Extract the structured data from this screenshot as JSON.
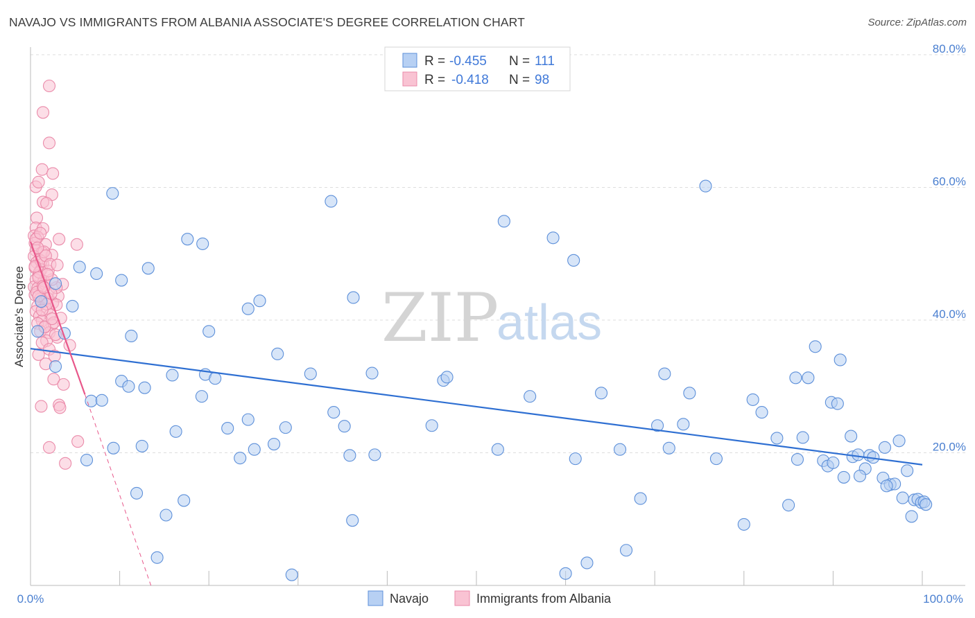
{
  "title": "NAVAJO VS IMMIGRANTS FROM ALBANIA ASSOCIATE'S DEGREE CORRELATION CHART",
  "source": "Source: ZipAtlas.com",
  "watermark": {
    "zip": "ZIP",
    "atlas": "atlas"
  },
  "colors": {
    "navajo_fill": "#b7d0f3",
    "navajo_stroke": "#5c8fd9",
    "navajo_line": "#2e6fd2",
    "albania_fill": "#f9c3d3",
    "albania_stroke": "#ea8aa9",
    "albania_line": "#e8578a",
    "grid": "#dddddd",
    "axis_text": "#4a7fd0"
  },
  "legend": {
    "rows": [
      {
        "r_label": "R =",
        "r_value": "-0.455",
        "n_label": "N =",
        "n_value": "111"
      },
      {
        "r_label": "R =",
        "r_value": "-0.418",
        "n_label": "N =",
        "n_value": "98"
      }
    ]
  },
  "chart_data": {
    "type": "scatter",
    "title": "NAVAJO VS IMMIGRANTS FROM ALBANIA ASSOCIATE'S DEGREE CORRELATION CHART",
    "xlabel": "",
    "ylabel": "Associate's Degree",
    "xlim": [
      0,
      100
    ],
    "ylim": [
      0,
      80
    ],
    "x_tick_labels": [
      "0.0%",
      "100.0%"
    ],
    "y_ticks": [
      20,
      40,
      60,
      80
    ],
    "y_tick_labels": [
      "20.0%",
      "40.0%",
      "60.0%",
      "80.0%"
    ],
    "grid": true,
    "series": [
      {
        "name": "Navajo",
        "r": -0.455,
        "n": 111,
        "trend": {
          "x0": 0,
          "y0": 35.7,
          "x1": 100,
          "y1": 18.2
        },
        "points": [
          [
            0.8,
            38.3
          ],
          [
            1.2,
            42.8
          ],
          [
            2.8,
            45.5
          ],
          [
            3.8,
            38.0
          ],
          [
            2.8,
            33.0
          ],
          [
            4.7,
            42.1
          ],
          [
            5.5,
            48.0
          ],
          [
            7.4,
            47.0
          ],
          [
            6.3,
            18.9
          ],
          [
            6.8,
            27.8
          ],
          [
            8.0,
            27.9
          ],
          [
            9.2,
            59.1
          ],
          [
            9.3,
            20.7
          ],
          [
            10.2,
            46.0
          ],
          [
            10.2,
            30.8
          ],
          [
            11.0,
            30.0
          ],
          [
            11.3,
            37.6
          ],
          [
            11.9,
            13.9
          ],
          [
            12.5,
            21.0
          ],
          [
            12.8,
            29.8
          ],
          [
            13.2,
            47.8
          ],
          [
            14.2,
            4.2
          ],
          [
            15.2,
            10.6
          ],
          [
            15.9,
            31.7
          ],
          [
            16.3,
            23.2
          ],
          [
            17.2,
            12.8
          ],
          [
            17.6,
            52.2
          ],
          [
            19.3,
            51.5
          ],
          [
            19.2,
            28.5
          ],
          [
            19.6,
            31.8
          ],
          [
            20.0,
            38.3
          ],
          [
            20.7,
            31.2
          ],
          [
            22.1,
            23.7
          ],
          [
            23.5,
            19.2
          ],
          [
            24.4,
            25.0
          ],
          [
            24.4,
            41.7
          ],
          [
            25.1,
            20.5
          ],
          [
            25.7,
            42.9
          ],
          [
            27.3,
            21.3
          ],
          [
            27.7,
            34.9
          ],
          [
            28.6,
            23.8
          ],
          [
            29.3,
            1.6
          ],
          [
            31.4,
            31.9
          ],
          [
            33.7,
            57.9
          ],
          [
            34.0,
            26.1
          ],
          [
            35.2,
            24.0
          ],
          [
            35.8,
            19.6
          ],
          [
            36.1,
            9.8
          ],
          [
            36.2,
            43.4
          ],
          [
            38.3,
            32.0
          ],
          [
            38.6,
            19.7
          ],
          [
            45.0,
            24.1
          ],
          [
            46.3,
            30.9
          ],
          [
            46.7,
            31.4
          ],
          [
            52.4,
            20.5
          ],
          [
            53.1,
            54.9
          ],
          [
            56.0,
            28.5
          ],
          [
            58.6,
            52.4
          ],
          [
            60.0,
            1.8
          ],
          [
            60.9,
            49.0
          ],
          [
            61.1,
            19.1
          ],
          [
            62.4,
            3.4
          ],
          [
            64.0,
            29.0
          ],
          [
            66.1,
            20.5
          ],
          [
            66.8,
            5.3
          ],
          [
            68.4,
            13.1
          ],
          [
            70.3,
            24.1
          ],
          [
            71.1,
            31.9
          ],
          [
            71.6,
            20.7
          ],
          [
            73.2,
            24.3
          ],
          [
            73.9,
            29.0
          ],
          [
            75.7,
            60.2
          ],
          [
            76.9,
            19.1
          ],
          [
            80.0,
            9.2
          ],
          [
            81.0,
            28.0
          ],
          [
            82.0,
            26.1
          ],
          [
            83.7,
            22.2
          ],
          [
            85.0,
            12.1
          ],
          [
            85.8,
            31.3
          ],
          [
            86.6,
            22.3
          ],
          [
            87.2,
            31.3
          ],
          [
            88.0,
            36.0
          ],
          [
            88.9,
            18.8
          ],
          [
            89.4,
            18.0
          ],
          [
            89.8,
            27.6
          ],
          [
            90.5,
            27.4
          ],
          [
            90.8,
            34.0
          ],
          [
            91.2,
            16.3
          ],
          [
            92.0,
            22.5
          ],
          [
            92.2,
            19.4
          ],
          [
            92.8,
            19.7
          ],
          [
            93.6,
            17.6
          ],
          [
            94.1,
            19.6
          ],
          [
            94.5,
            19.3
          ],
          [
            95.6,
            16.2
          ],
          [
            95.8,
            20.8
          ],
          [
            96.4,
            15.2
          ],
          [
            96.9,
            15.3
          ],
          [
            97.4,
            21.8
          ],
          [
            97.8,
            13.2
          ],
          [
            98.3,
            17.3
          ],
          [
            98.8,
            10.4
          ],
          [
            99.1,
            12.9
          ],
          [
            99.5,
            13.0
          ],
          [
            99.9,
            12.5
          ],
          [
            100.2,
            12.6
          ],
          [
            100.4,
            12.2
          ],
          [
            96.0,
            15.0
          ],
          [
            93.0,
            16.5
          ],
          [
            90.0,
            18.5
          ],
          [
            86.0,
            19.0
          ]
        ]
      },
      {
        "name": "Immigrants from Albania",
        "r": -0.418,
        "n": 98,
        "trend": {
          "x0": 0,
          "y0": 51.8,
          "x1": 6.1,
          "y1": 28.8
        },
        "trend_extension": {
          "x0": 6.1,
          "y0": 28.8,
          "x1": 13.5,
          "y1": 0
        },
        "points": [
          [
            2.1,
            75.3
          ],
          [
            1.4,
            71.3
          ],
          [
            2.1,
            66.7
          ],
          [
            1.3,
            62.7
          ],
          [
            2.5,
            62.1
          ],
          [
            0.6,
            60.1
          ],
          [
            0.9,
            60.8
          ],
          [
            2.4,
            58.9
          ],
          [
            1.4,
            57.8
          ],
          [
            1.8,
            57.6
          ],
          [
            0.7,
            55.4
          ],
          [
            0.6,
            53.9
          ],
          [
            1.4,
            53.8
          ],
          [
            0.4,
            52.7
          ],
          [
            0.8,
            52.5
          ],
          [
            3.2,
            52.2
          ],
          [
            0.5,
            51.6
          ],
          [
            1.7,
            51.4
          ],
          [
            5.2,
            51.4
          ],
          [
            0.6,
            50.5
          ],
          [
            1.3,
            50.2
          ],
          [
            2.4,
            49.8
          ],
          [
            0.4,
            49.6
          ],
          [
            1.0,
            49.1
          ],
          [
            0.7,
            48.7
          ],
          [
            1.4,
            48.5
          ],
          [
            0.5,
            47.9
          ],
          [
            1.2,
            47.6
          ],
          [
            0.9,
            46.7
          ],
          [
            0.6,
            46.1
          ],
          [
            1.6,
            45.5
          ],
          [
            3.6,
            45.4
          ],
          [
            0.4,
            45.0
          ],
          [
            0.8,
            44.8
          ],
          [
            1.4,
            44.6
          ],
          [
            2.0,
            44.2
          ],
          [
            0.5,
            43.8
          ],
          [
            3.1,
            43.6
          ],
          [
            1.1,
            43.2
          ],
          [
            1.6,
            42.8
          ],
          [
            2.5,
            42.6
          ],
          [
            0.8,
            42.1
          ],
          [
            1.9,
            41.7
          ],
          [
            0.6,
            41.3
          ],
          [
            2.2,
            40.8
          ],
          [
            1.0,
            40.6
          ],
          [
            3.4,
            40.3
          ],
          [
            1.3,
            39.9
          ],
          [
            0.8,
            39.5
          ],
          [
            2.4,
            39.3
          ],
          [
            1.6,
            38.9
          ],
          [
            1.1,
            38.3
          ],
          [
            2.1,
            38.1
          ],
          [
            3.0,
            37.4
          ],
          [
            1.8,
            36.9
          ],
          [
            1.3,
            36.6
          ],
          [
            4.4,
            36.2
          ],
          [
            2.1,
            35.6
          ],
          [
            0.9,
            34.8
          ],
          [
            2.7,
            34.6
          ],
          [
            1.7,
            33.4
          ],
          [
            2.6,
            31.1
          ],
          [
            3.7,
            30.3
          ],
          [
            1.2,
            27.0
          ],
          [
            3.2,
            27.2
          ],
          [
            3.3,
            26.8
          ],
          [
            5.3,
            21.7
          ],
          [
            2.1,
            20.8
          ],
          [
            3.9,
            18.4
          ],
          [
            1.5,
            45.9
          ],
          [
            2.9,
            44.9
          ],
          [
            0.7,
            44.2
          ],
          [
            1.9,
            43.3
          ],
          [
            2.4,
            46.1
          ],
          [
            1.0,
            47.2
          ],
          [
            2.9,
            42.3
          ],
          [
            1.2,
            48.9
          ],
          [
            1.5,
            50.3
          ],
          [
            0.6,
            52.2
          ],
          [
            1.7,
            49.7
          ],
          [
            2.0,
            47.4
          ],
          [
            0.9,
            46.4
          ],
          [
            1.4,
            45.1
          ],
          [
            2.3,
            44.0
          ],
          [
            0.5,
            48.1
          ],
          [
            1.8,
            42.4
          ],
          [
            2.6,
            39.6
          ],
          [
            1.3,
            41.5
          ],
          [
            0.8,
            50.9
          ],
          [
            2.2,
            48.4
          ],
          [
            1.1,
            53.1
          ],
          [
            3.0,
            48.3
          ],
          [
            1.6,
            39.0
          ],
          [
            2.8,
            37.8
          ],
          [
            0.9,
            43.6
          ],
          [
            1.9,
            46.9
          ],
          [
            2.4,
            40.2
          ],
          [
            1.5,
            44.9
          ]
        ]
      }
    ]
  },
  "axes": {
    "ylabel": "Associate's Degree",
    "x_min_label": "0.0%",
    "x_max_label": "100.0%"
  },
  "bottom_legend": [
    {
      "label": "Navajo"
    },
    {
      "label": "Immigrants from Albania"
    }
  ]
}
